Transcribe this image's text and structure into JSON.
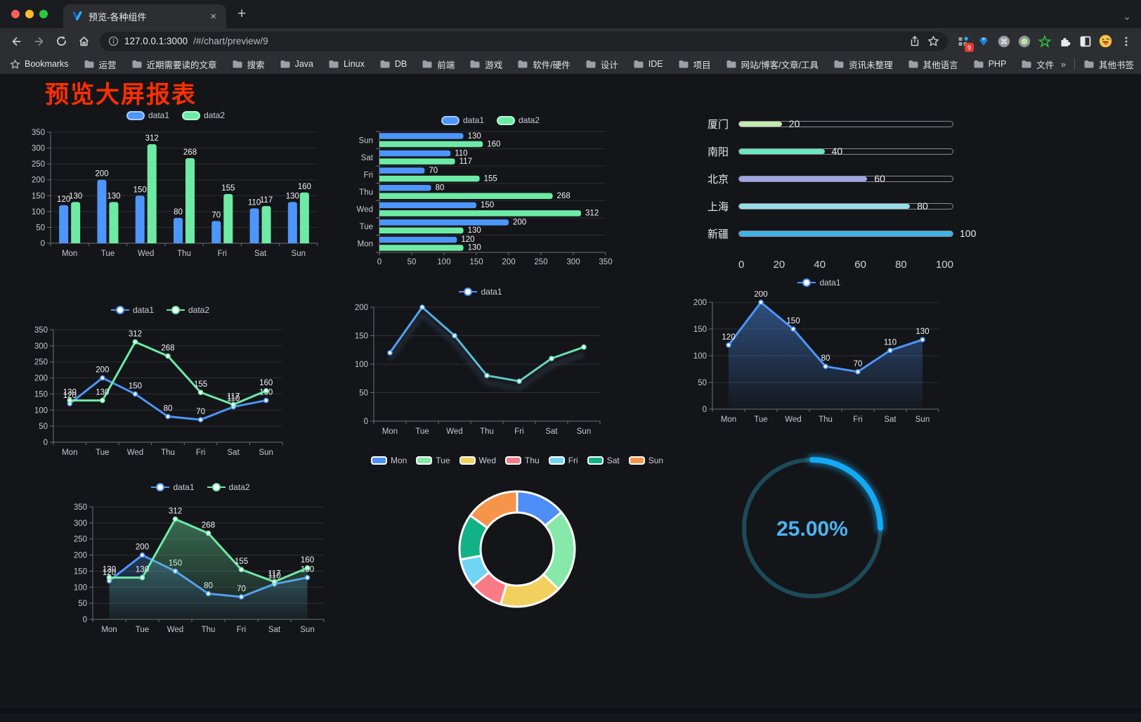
{
  "browser": {
    "tab_title": "预览-各种组件",
    "close_glyph": "×",
    "new_tab_glyph": "+",
    "chevron_glyph": "⌄",
    "url_host": "127.0.0.1:3000",
    "url_path": "/#/chart/preview/9",
    "bookmarks_label": "Bookmarks",
    "bookmarks": [
      "运营",
      "近期需要读的文章",
      "搜索",
      "Java",
      "Linux",
      "DB",
      "前端",
      "游戏",
      "软件/硬件",
      "设计",
      "IDE",
      "项目",
      "网站/博客/文章/工具",
      "资讯未整理",
      "其他语言",
      "PHP",
      "文件服务器"
    ],
    "overflow_glyph": "»",
    "other_bookmarks": "其他书签",
    "ext_badge": "9"
  },
  "page": {
    "title": "预览大屏报表",
    "title_color": "#ff2f00",
    "background": "#141519"
  },
  "chart_data": [
    {
      "id": "bar1",
      "type": "bar",
      "categories": [
        "Mon",
        "Tue",
        "Wed",
        "Thu",
        "Fri",
        "Sat",
        "Sun"
      ],
      "series": [
        {
          "name": "data1",
          "color": "#4d96fa",
          "values": [
            120,
            200,
            150,
            80,
            70,
            110,
            130
          ]
        },
        {
          "name": "data2",
          "color": "#6deba5",
          "values": [
            130,
            130,
            312,
            268,
            155,
            117,
            160
          ]
        }
      ],
      "ylim": [
        0,
        350
      ],
      "ytick": 50,
      "value_labels": true,
      "legend_position": "top",
      "grid": true
    },
    {
      "id": "hbar",
      "type": "bar-horizontal",
      "categories": [
        "Mon",
        "Tue",
        "Wed",
        "Thu",
        "Fri",
        "Sat",
        "Sun"
      ],
      "series": [
        {
          "name": "data1",
          "color": "#4d96fa",
          "values": [
            120,
            200,
            150,
            80,
            70,
            110,
            130
          ]
        },
        {
          "name": "data2",
          "color": "#6deba5",
          "values": [
            130,
            130,
            312,
            268,
            155,
            117,
            160
          ]
        }
      ],
      "xlim": [
        0,
        350
      ],
      "xtick": 50,
      "value_labels": true,
      "legend_position": "top",
      "grid": true
    },
    {
      "id": "progress",
      "type": "bar-progress",
      "categories": [
        "厦门",
        "南阳",
        "北京",
        "上海",
        "新疆"
      ],
      "values": [
        20,
        40,
        60,
        80,
        100
      ],
      "colors": [
        "#c4ebad",
        "#6be6c1",
        "#a0a7e6",
        "#96dee8",
        "#3fb1e3"
      ],
      "xlim": [
        0,
        100
      ],
      "xticks": [
        0,
        20,
        40,
        60,
        80,
        100
      ]
    },
    {
      "id": "line2",
      "type": "line",
      "categories": [
        "Mon",
        "Tue",
        "Wed",
        "Thu",
        "Fri",
        "Sat",
        "Sun"
      ],
      "series": [
        {
          "name": "data1",
          "color": "#4d96fa",
          "values": [
            120,
            200,
            150,
            80,
            70,
            110,
            130
          ]
        },
        {
          "name": "data2",
          "color": "#6deba5",
          "values": [
            130,
            130,
            312,
            268,
            155,
            117,
            160
          ]
        }
      ],
      "ylim": [
        0,
        350
      ],
      "ytick": 50,
      "value_labels": true,
      "legend_position": "top",
      "grid": true
    },
    {
      "id": "line1",
      "type": "line",
      "categories": [
        "Mon",
        "Tue",
        "Wed",
        "Thu",
        "Fri",
        "Sat",
        "Sun"
      ],
      "series": [
        {
          "name": "data1",
          "color": "#4d96fa",
          "values": [
            120,
            200,
            150,
            80,
            70,
            110,
            130
          ]
        }
      ],
      "ylim": [
        0,
        200
      ],
      "ytick": 50,
      "value_labels": false,
      "gradient": [
        "#4d96fa",
        "#6deba5"
      ],
      "glow": true,
      "legend_position": "top",
      "grid": true
    },
    {
      "id": "area1",
      "type": "area",
      "categories": [
        "Mon",
        "Tue",
        "Wed",
        "Thu",
        "Fri",
        "Sat",
        "Sun"
      ],
      "series": [
        {
          "name": "data1",
          "color": "#4d96fa",
          "values": [
            120,
            200,
            150,
            80,
            70,
            110,
            130
          ]
        }
      ],
      "ylim": [
        0,
        200
      ],
      "ytick": 50,
      "value_labels": true,
      "legend_position": "top",
      "grid": true
    },
    {
      "id": "area2",
      "type": "area",
      "categories": [
        "Mon",
        "Tue",
        "Wed",
        "Thu",
        "Fri",
        "Sat",
        "Sun"
      ],
      "series": [
        {
          "name": "data1",
          "color": "#4d96fa",
          "values": [
            120,
            200,
            150,
            80,
            70,
            110,
            130
          ]
        },
        {
          "name": "data2",
          "color": "#6deba5",
          "values": [
            130,
            130,
            312,
            268,
            155,
            117,
            160
          ]
        }
      ],
      "ylim": [
        0,
        350
      ],
      "ytick": 50,
      "value_labels": true,
      "legend_position": "top",
      "grid": true
    },
    {
      "id": "pie",
      "type": "pie",
      "categories": [
        "Mon",
        "Tue",
        "Wed",
        "Thu",
        "Fri",
        "Sat",
        "Sun"
      ],
      "values": [
        120,
        200,
        150,
        80,
        70,
        110,
        130
      ],
      "colors": [
        "#4e8ef7",
        "#86e9a9",
        "#f2d05e",
        "#fa7a85",
        "#70d4f5",
        "#13b286",
        "#f6954a"
      ],
      "donut": true,
      "border_color": "#ffffff",
      "legend_position": "top"
    },
    {
      "id": "gauge",
      "type": "gauge",
      "value": 25,
      "label": "25.00%",
      "color": "#14a9f6",
      "track_color": "#1d4a56",
      "label_color": "#4ab5f3"
    }
  ]
}
